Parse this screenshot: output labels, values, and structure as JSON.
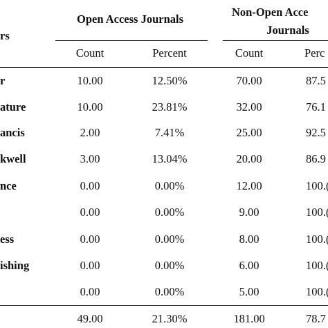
{
  "table": {
    "group_headers": {
      "publisher": "rs",
      "open_access": "Open Access Journals",
      "non_open_line1": "Non-Open Acce",
      "non_open_line2": "Journals"
    },
    "sub_headers": [
      "Count",
      "Percent",
      "Count",
      "Perc"
    ],
    "rows": [
      [
        "r",
        "10.00",
        "12.50%",
        "70.00",
        "87.5"
      ],
      [
        "ature",
        "10.00",
        "23.81%",
        "32.00",
        "76.1"
      ],
      [
        "ancis",
        "2.00",
        "7.41%",
        "25.00",
        "92.5"
      ],
      [
        "kwell",
        "3.00",
        "13.04%",
        "20.00",
        "86.9"
      ],
      [
        "nce",
        "0.00",
        "0.00%",
        "12.00",
        "100.("
      ],
      [
        null,
        "0.00",
        "0.00%",
        "9.00",
        "100.("
      ],
      [
        "ess",
        "0.00",
        "0.00%",
        "8.00",
        "100.("
      ],
      [
        "ishing",
        "0.00",
        "0.00%",
        "6.00",
        "100.("
      ],
      [
        null,
        "0.00",
        "0.00%",
        "5.00",
        "100.("
      ],
      [
        null,
        "49.00",
        "21.30%",
        "181.00",
        "78.7"
      ]
    ]
  }
}
